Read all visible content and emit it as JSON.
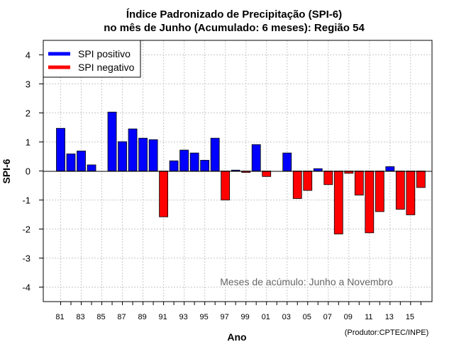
{
  "chart_data": {
    "type": "bar",
    "title": "Índice Padronizado de Precipitação (SPI-6)",
    "subtitle": "no mês de Junho (Acumulado: 6 meses): Região 54",
    "xlabel": "Ano",
    "ylabel": "SPI-6",
    "ylim": [
      -4.5,
      4.5
    ],
    "yticks": [
      -4,
      -3,
      -2,
      -1,
      0,
      1,
      2,
      3,
      4
    ],
    "grid": true,
    "legend_position": "top-left",
    "legend": [
      {
        "label": "SPI positivo",
        "color": "#0000ff"
      },
      {
        "label": "SPI negativo",
        "color": "#ff0000"
      }
    ],
    "colors": {
      "positive": "#0000ff",
      "negative": "#ff0000"
    },
    "annotation": "Meses de acúmulo: Junho a Novembro",
    "credit": "(Produtor:CPTEC/INPE)",
    "categories": [
      "81",
      "82",
      "83",
      "84",
      "85",
      "86",
      "87",
      "88",
      "89",
      "90",
      "91",
      "92",
      "93",
      "94",
      "95",
      "96",
      "97",
      "98",
      "99",
      "00",
      "01",
      "02",
      "03",
      "04",
      "05",
      "06",
      "07",
      "08",
      "09",
      "10",
      "11",
      "12",
      "13",
      "14",
      "15",
      "16"
    ],
    "tick_labels": [
      "81",
      "83",
      "85",
      "87",
      "89",
      "91",
      "93",
      "95",
      "97",
      "99",
      "01",
      "03",
      "05",
      "07",
      "09",
      "11",
      "13",
      "15"
    ],
    "values": [
      1.47,
      0.59,
      0.69,
      0.21,
      0.0,
      2.03,
      1.01,
      1.45,
      1.13,
      1.08,
      -1.58,
      0.35,
      0.72,
      0.62,
      0.37,
      1.13,
      -1.0,
      0.03,
      -0.05,
      0.91,
      -0.19,
      0.0,
      0.62,
      -0.95,
      -0.67,
      0.08,
      -0.47,
      -2.17,
      -0.08,
      -0.83,
      -2.13,
      -1.4,
      0.15,
      -1.32,
      -1.51,
      -0.57
    ]
  }
}
